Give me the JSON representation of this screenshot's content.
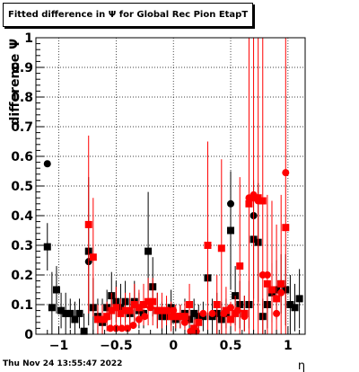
{
  "title": "Fitted difference in  Ψ  for Global Rec Pion EtapT",
  "datestamp": "Thu Nov 24 13:55:47 2022",
  "chart_data": {
    "type": "scatter",
    "xlabel": "η",
    "ylabel": "difference Ψ",
    "xlim": [
      -1.2,
      1.15
    ],
    "ylim": [
      0,
      1
    ],
    "x_ticks": [
      -1,
      -0.5,
      0,
      0.5,
      1
    ],
    "x_tick_labels": [
      "−1",
      "−0.5",
      "0",
      "0.5",
      "1"
    ],
    "y_ticks": [
      0,
      0.1,
      0.2,
      0.3,
      0.4,
      0.5,
      0.6,
      0.7,
      0.8,
      0.9,
      1
    ],
    "y_tick_labels": [
      "0",
      "0.1",
      "0.2",
      "0.3",
      "0.4",
      "0.5",
      "0.6",
      "0.7",
      "0.8",
      "0.9",
      "1"
    ],
    "grid": true,
    "colors": {
      "black": "#000000",
      "red": "#ff0000"
    },
    "series": [
      {
        "marker": "square",
        "color": "#000000",
        "points": [
          [
            -1.1,
            0.295,
            0.08
          ],
          [
            -1.06,
            0.09,
            0.12
          ],
          [
            -1.02,
            0.15,
            0.08
          ],
          [
            -0.98,
            0.08,
            0.06
          ],
          [
            -0.94,
            0.07,
            0.07
          ],
          [
            -0.9,
            0.07,
            0.05
          ],
          [
            -0.86,
            0.05,
            0.06
          ],
          [
            -0.82,
            0.07,
            0.05
          ],
          [
            -0.78,
            0.01,
            0.06
          ],
          [
            -0.74,
            0.28,
            0.25
          ],
          [
            -0.7,
            0.09,
            0.1
          ],
          [
            -0.66,
            0.06,
            0.06
          ],
          [
            -0.62,
            0.04,
            0.08
          ],
          [
            -0.58,
            0.09,
            0.06
          ],
          [
            -0.54,
            0.13,
            0.08
          ],
          [
            -0.5,
            0.11,
            0.07
          ],
          [
            -0.46,
            0.09,
            0.08
          ],
          [
            -0.42,
            0.11,
            0.07
          ],
          [
            -0.38,
            0.07,
            0.05
          ],
          [
            -0.34,
            0.11,
            0.07
          ],
          [
            -0.3,
            0.08,
            0.06
          ],
          [
            -0.26,
            0.07,
            0.05
          ],
          [
            -0.22,
            0.28,
            0.2
          ],
          [
            -0.18,
            0.16,
            0.1
          ],
          [
            -0.14,
            0.08,
            0.06
          ],
          [
            -0.1,
            0.06,
            0.05
          ],
          [
            -0.06,
            0.06,
            0.06
          ],
          [
            -0.02,
            0.09,
            0.06
          ],
          [
            0.02,
            0.05,
            0.04
          ],
          [
            0.06,
            0.06,
            0.04
          ],
          [
            0.1,
            0.07,
            0.05
          ],
          [
            0.14,
            0.05,
            0.05
          ],
          [
            0.18,
            0.07,
            0.05
          ],
          [
            0.22,
            0.06,
            0.04
          ],
          [
            0.26,
            0.06,
            0.05
          ],
          [
            0.3,
            0.19,
            0.15
          ],
          [
            0.34,
            0.06,
            0.06
          ],
          [
            0.38,
            0.07,
            0.07
          ],
          [
            0.42,
            0.05,
            0.06
          ],
          [
            0.46,
            0.07,
            0.05
          ],
          [
            0.5,
            0.35,
            0.2
          ],
          [
            0.54,
            0.13,
            0.1
          ],
          [
            0.58,
            0.1,
            0.08
          ],
          [
            0.62,
            0.07,
            0.06
          ],
          [
            0.66,
            0.1,
            0.08
          ],
          [
            0.7,
            0.32,
            0.2
          ],
          [
            0.74,
            0.31,
            0.2
          ],
          [
            0.78,
            0.06,
            0.06
          ],
          [
            0.82,
            0.1,
            0.08
          ],
          [
            0.86,
            0.14,
            0.1
          ],
          [
            0.9,
            0.15,
            0.1
          ],
          [
            0.94,
            0.17,
            0.1
          ],
          [
            0.98,
            0.15,
            0.12
          ],
          [
            1.02,
            0.1,
            0.1
          ],
          [
            1.06,
            0.09,
            0.08
          ],
          [
            1.1,
            0.12,
            0.1
          ]
        ]
      },
      {
        "marker": "circle",
        "color": "#000000",
        "points": [
          [
            -1.1,
            0.575
          ],
          [
            -0.74,
            0.245
          ],
          [
            0.5,
            0.44
          ],
          [
            0.7,
            0.4
          ]
        ]
      },
      {
        "marker": "square",
        "color": "#ff0000",
        "points": [
          [
            -0.74,
            0.37,
            0.3
          ],
          [
            -0.7,
            0.26,
            0.2
          ],
          [
            -0.66,
            0.05,
            0.05
          ],
          [
            -0.62,
            0.05,
            0.05
          ],
          [
            -0.58,
            0.06,
            0.05
          ],
          [
            -0.54,
            0.08,
            0.06
          ],
          [
            -0.5,
            0.09,
            0.07
          ],
          [
            -0.46,
            0.07,
            0.05
          ],
          [
            -0.42,
            0.08,
            0.06
          ],
          [
            -0.38,
            0.08,
            0.06
          ],
          [
            -0.34,
            0.1,
            0.07
          ],
          [
            -0.3,
            0.09,
            0.06
          ],
          [
            -0.26,
            0.1,
            0.07
          ],
          [
            -0.22,
            0.11,
            0.08
          ],
          [
            -0.18,
            0.11,
            0.08
          ],
          [
            -0.14,
            0.08,
            0.06
          ],
          [
            -0.1,
            0.08,
            0.06
          ],
          [
            -0.06,
            0.08,
            0.05
          ],
          [
            -0.02,
            0.06,
            0.05
          ],
          [
            0.02,
            0.06,
            0.04
          ],
          [
            0.06,
            0.06,
            0.04
          ],
          [
            0.1,
            0.06,
            0.05
          ],
          [
            0.14,
            0.1,
            0.07
          ],
          [
            0.18,
            0.02,
            0.03
          ],
          [
            0.22,
            0.04,
            0.04
          ],
          [
            0.3,
            0.3,
            0.35
          ],
          [
            0.38,
            0.1,
            0.1
          ],
          [
            0.42,
            0.29,
            0.3
          ],
          [
            0.46,
            0.08,
            0.08
          ],
          [
            0.5,
            0.05,
            0.06
          ],
          [
            0.54,
            0.07,
            0.06
          ],
          [
            0.58,
            0.23,
            0.3
          ],
          [
            0.62,
            0.07,
            0.06
          ],
          [
            0.66,
            0.44,
            0.6
          ],
          [
            0.7,
            0.46,
            0.55
          ],
          [
            0.74,
            0.46,
            0.6
          ],
          [
            0.78,
            0.45,
            0.6
          ],
          [
            0.82,
            0.17,
            0.3
          ],
          [
            0.86,
            0.15,
            0.3
          ],
          [
            0.9,
            0.12,
            0.25
          ],
          [
            0.94,
            0.17,
            0.3
          ],
          [
            0.98,
            0.36,
            0.65
          ]
        ]
      },
      {
        "marker": "circle",
        "color": "#ff0000",
        "points": [
          [
            -0.6,
            0.05
          ],
          [
            -0.55,
            0.02
          ],
          [
            -0.5,
            0.02
          ],
          [
            -0.45,
            0.02
          ],
          [
            -0.4,
            0.02
          ],
          [
            -0.35,
            0.03
          ],
          [
            -0.3,
            0.05
          ],
          [
            -0.25,
            0.06
          ],
          [
            -0.2,
            0.09
          ],
          [
            -0.05,
            0.08
          ],
          [
            0.0,
            0.08
          ],
          [
            0.05,
            0.06
          ],
          [
            0.1,
            0.04
          ],
          [
            0.15,
            0.01
          ],
          [
            0.2,
            0.01
          ],
          [
            0.26,
            0.07
          ],
          [
            0.34,
            0.07
          ],
          [
            0.44,
            0.07
          ],
          [
            0.5,
            0.09
          ],
          [
            0.56,
            0.08
          ],
          [
            0.62,
            0.06
          ],
          [
            0.66,
            0.46
          ],
          [
            0.7,
            0.47
          ],
          [
            0.74,
            0.45
          ],
          [
            0.78,
            0.2
          ],
          [
            0.82,
            0.2
          ],
          [
            0.86,
            0.15
          ],
          [
            0.9,
            0.07
          ],
          [
            0.94,
            0.14
          ],
          [
            0.98,
            0.545
          ]
        ]
      }
    ]
  }
}
